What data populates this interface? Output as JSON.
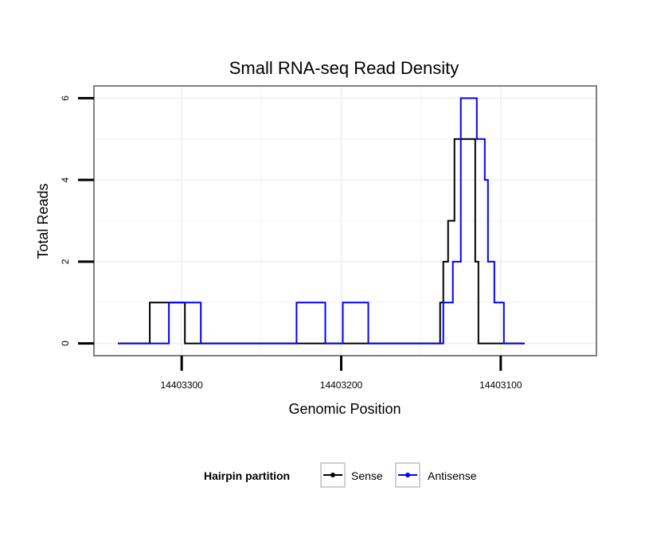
{
  "chart_data": {
    "type": "line",
    "title": "Small RNA-seq Read Density",
    "xlabel": "Genomic Position",
    "ylabel": "Total Reads",
    "x_reversed": true,
    "xlim": [
      14403355,
      14403040
    ],
    "ylim": [
      -0.3,
      6.3
    ],
    "x_ticks": [
      14403300,
      14403200,
      14403100
    ],
    "x_tick_labels": [
      "14403300",
      "14403200",
      "14403100"
    ],
    "y_ticks": [
      0,
      2,
      4,
      6
    ],
    "y_tick_labels": [
      "0",
      "2",
      "4",
      "6"
    ],
    "grid": true,
    "legend": {
      "title": "Hairpin partition",
      "position": "bottom",
      "entries": [
        "Sense",
        "Antisense"
      ]
    },
    "series": [
      {
        "name": "Sense",
        "color": "#000000",
        "step": true,
        "x": [
          14403340,
          14403320,
          14403320,
          14403298,
          14403298,
          14403212,
          14403212,
          14403138,
          14403138,
          14403136,
          14403136,
          14403133,
          14403133,
          14403129,
          14403129,
          14403116,
          14403116,
          14403114,
          14403114,
          14403112,
          14403112,
          14403085
        ],
        "y": [
          0,
          0,
          1,
          1,
          0,
          0,
          0,
          0,
          1,
          1,
          2,
          2,
          3,
          3,
          5,
          5,
          2,
          2,
          0,
          0,
          0,
          0
        ]
      },
      {
        "name": "Antisense",
        "color": "#0000ff",
        "step": true,
        "x": [
          14403340,
          14403308,
          14403308,
          14403288,
          14403288,
          14403228,
          14403228,
          14403210,
          14403210,
          14403199,
          14403199,
          14403183,
          14403183,
          14403136,
          14403136,
          14403130,
          14403130,
          14403125,
          14403125,
          14403115,
          14403115,
          14403110,
          14403110,
          14403108,
          14403108,
          14403104,
          14403104,
          14403098,
          14403098,
          14403085
        ],
        "y": [
          0,
          0,
          1,
          1,
          0,
          0,
          1,
          1,
          0,
          0,
          1,
          1,
          0,
          0,
          1,
          1,
          2,
          2,
          6,
          6,
          5,
          5,
          4,
          4,
          2,
          2,
          1,
          1,
          0,
          0
        ]
      }
    ]
  }
}
